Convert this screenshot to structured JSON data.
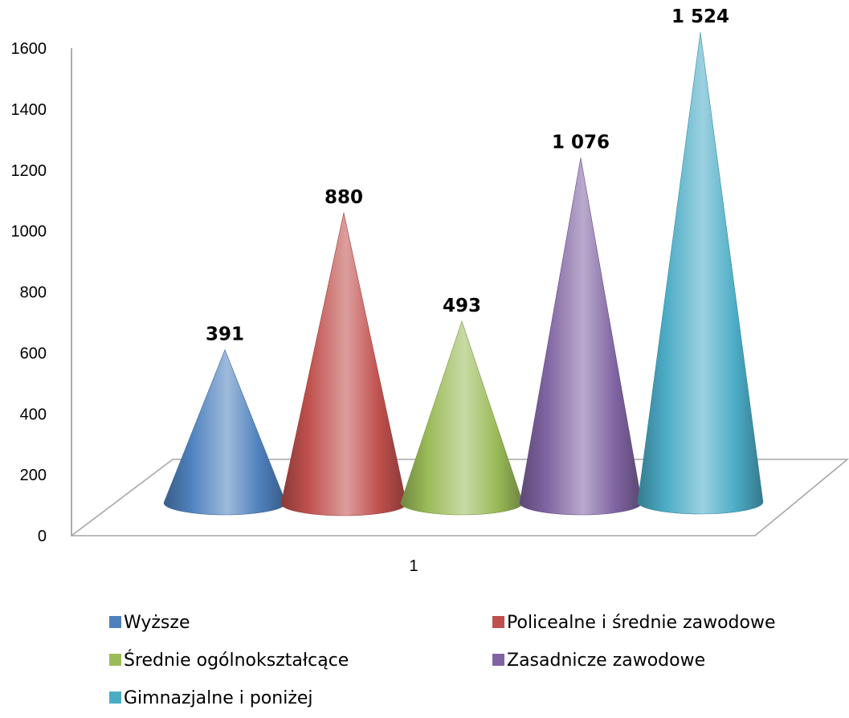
{
  "chart_data": {
    "type": "bar",
    "shape": "cone",
    "three_d": true,
    "categories": [
      "1"
    ],
    "series": [
      {
        "name": "Wyższe",
        "values": [
          391
        ],
        "label": "391",
        "color": "#4F81BD"
      },
      {
        "name": "Policealne i średnie zawodowe",
        "values": [
          880
        ],
        "label": "880",
        "color": "#C0504D"
      },
      {
        "name": "Średnie ogólnokształcące",
        "values": [
          493
        ],
        "label": "493",
        "color": "#9BBB59"
      },
      {
        "name": "Zasadnicze zawodowe",
        "values": [
          1076
        ],
        "label": "1 076",
        "color": "#8064A2"
      },
      {
        "name": "Gimnazjalne i poniżej",
        "values": [
          1524
        ],
        "label": "1 524",
        "color": "#4BACC6"
      }
    ],
    "y_ticks": [
      "0",
      "200",
      "400",
      "600",
      "800",
      "1000",
      "1200",
      "1400",
      "1600"
    ],
    "ylim": [
      0,
      1600
    ],
    "grid": false,
    "legend_position": "bottom"
  }
}
